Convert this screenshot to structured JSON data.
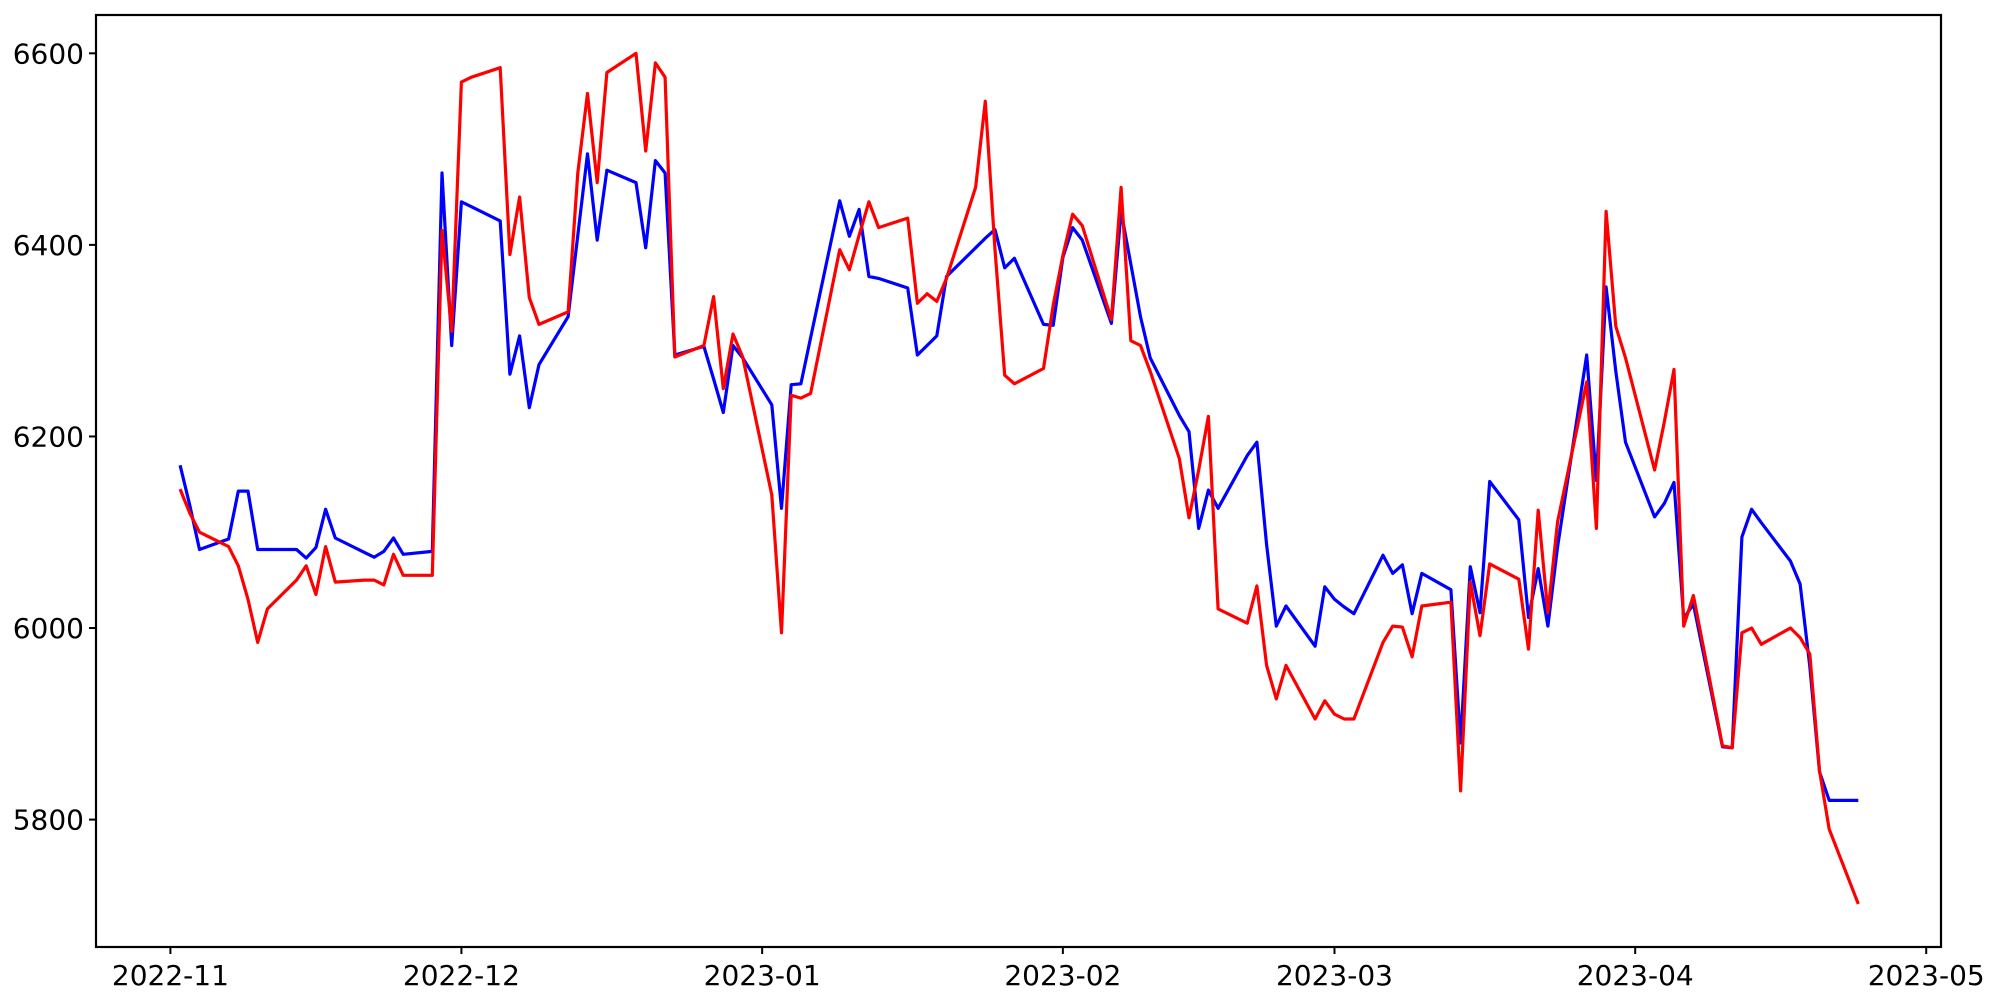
{
  "page": {
    "background_color": "#ffffff",
    "text_color": "#000000",
    "spine_color": "#000000"
  },
  "chart_data": {
    "type": "line",
    "title": "",
    "xlabel": "",
    "ylabel": "",
    "grid": false,
    "legend_position": "none",
    "x_tick_labels": [
      "2022-11",
      "2022-12",
      "2023-01",
      "2023-02",
      "2023-03",
      "2023-04",
      "2023-05"
    ],
    "x_tick_dates": [
      "2022-11-01",
      "2022-12-01",
      "2023-01-01",
      "2023-02-01",
      "2023-03-01",
      "2023-04-01",
      "2023-05-01"
    ],
    "y_ticks": [
      5800,
      6000,
      6200,
      6400,
      6600
    ],
    "ylim": [
      5667,
      6640
    ],
    "xlim": [
      "2022-10-24",
      "2023-05-02"
    ],
    "dates": [
      "2022-11-02",
      "2022-11-03",
      "2022-11-04",
      "2022-11-07",
      "2022-11-08",
      "2022-11-09",
      "2022-11-10",
      "2022-11-11",
      "2022-11-14",
      "2022-11-15",
      "2022-11-16",
      "2022-11-17",
      "2022-11-18",
      "2022-11-21",
      "2022-11-22",
      "2022-11-23",
      "2022-11-24",
      "2022-11-25",
      "2022-11-28",
      "2022-11-29",
      "2022-11-30",
      "2022-12-01",
      "2022-12-02",
      "2022-12-05",
      "2022-12-06",
      "2022-12-07",
      "2022-12-08",
      "2022-12-09",
      "2022-12-12",
      "2022-12-13",
      "2022-12-14",
      "2022-12-15",
      "2022-12-16",
      "2022-12-19",
      "2022-12-20",
      "2022-12-21",
      "2022-12-22",
      "2022-12-23",
      "2022-12-26",
      "2022-12-27",
      "2022-12-28",
      "2022-12-29",
      "2022-12-30",
      "2023-01-02",
      "2023-01-03",
      "2023-01-04",
      "2023-01-05",
      "2023-01-06",
      "2023-01-09",
      "2023-01-10",
      "2023-01-11",
      "2023-01-12",
      "2023-01-13",
      "2023-01-16",
      "2023-01-17",
      "2023-01-18",
      "2023-01-19",
      "2023-01-20",
      "2023-01-23",
      "2023-01-24",
      "2023-01-25",
      "2023-01-26",
      "2023-01-27",
      "2023-01-30",
      "2023-01-31",
      "2023-02-01",
      "2023-02-02",
      "2023-02-03",
      "2023-02-06",
      "2023-02-07",
      "2023-02-08",
      "2023-02-09",
      "2023-02-10",
      "2023-02-13",
      "2023-02-14",
      "2023-02-15",
      "2023-02-16",
      "2023-02-17",
      "2023-02-20",
      "2023-02-21",
      "2023-02-22",
      "2023-02-23",
      "2023-02-24",
      "2023-02-27",
      "2023-02-28",
      "2023-03-01",
      "2023-03-02",
      "2023-03-03",
      "2023-03-06",
      "2023-03-07",
      "2023-03-08",
      "2023-03-09",
      "2023-03-10",
      "2023-03-13",
      "2023-03-14",
      "2023-03-15",
      "2023-03-16",
      "2023-03-17",
      "2023-03-20",
      "2023-03-21",
      "2023-03-22",
      "2023-03-23",
      "2023-03-24",
      "2023-03-27",
      "2023-03-28",
      "2023-03-29",
      "2023-03-30",
      "2023-03-31",
      "2023-04-03",
      "2023-04-04",
      "2023-04-05",
      "2023-04-06",
      "2023-04-07",
      "2023-04-10",
      "2023-04-11",
      "2023-04-12",
      "2023-04-13",
      "2023-04-14",
      "2023-04-17",
      "2023-04-18",
      "2023-04-19",
      "2023-04-20",
      "2023-04-21",
      "2023-04-24"
    ],
    "series": [
      {
        "name": "blue-line",
        "color": "#0000ff",
        "values": [
          6170,
          6128,
          6082,
          6093,
          6143,
          6143,
          6082,
          6082,
          6082,
          6073,
          6084,
          6124,
          6094,
          6079,
          6074,
          6080,
          6094,
          6077,
          6080,
          6475,
          6295,
          6445,
          6440,
          6425,
          6265,
          6305,
          6230,
          6275,
          6325,
          6410,
          6495,
          6405,
          6478,
          6465,
          6397,
          6488,
          6475,
          6285,
          6294,
          6260,
          6225,
          6295,
          6282,
          6233,
          6125,
          6254,
          6255,
          6303,
          6446,
          6409,
          6437,
          6367,
          6365,
          6355,
          6285,
          6295,
          6305,
          6367,
          6397,
          6407,
          6416,
          6376,
          6386,
          6317,
          6316,
          6387,
          6418,
          6405,
          6318,
          6435,
          6380,
          6325,
          6282,
          6222,
          6205,
          6104,
          6144,
          6125,
          6180,
          6194,
          6087,
          6002,
          6023,
          5981,
          6043,
          6030,
          6022,
          6015,
          6076,
          6057,
          6066,
          6015,
          6057,
          6040,
          5880,
          6064,
          6016,
          6153,
          6113,
          6011,
          6062,
          6002,
          6085,
          6285,
          6154,
          6356,
          6268,
          6194,
          6116,
          6130,
          6152,
          6010,
          6025,
          5876,
          5875,
          6095,
          6124,
          6110,
          6070,
          6046,
          5960,
          5850,
          5820,
          5820
        ]
      },
      {
        "name": "red-line",
        "color": "#ff0000",
        "values": [
          6145,
          6120,
          6100,
          6085,
          6065,
          6030,
          5985,
          6020,
          6050,
          6065,
          6035,
          6085,
          6048,
          6050,
          6050,
          6045,
          6077,
          6055,
          6055,
          6415,
          6310,
          6570,
          6575,
          6585,
          6390,
          6450,
          6345,
          6317,
          6330,
          6475,
          6558,
          6465,
          6580,
          6600,
          6498,
          6590,
          6575,
          6283,
          6295,
          6346,
          6250,
          6307,
          6283,
          6139,
          5995,
          6243,
          6240,
          6245,
          6395,
          6374,
          6410,
          6445,
          6418,
          6428,
          6339,
          6349,
          6341,
          6365,
          6460,
          6550,
          6395,
          6264,
          6255,
          6271,
          6337,
          6389,
          6432,
          6420,
          6322,
          6460,
          6300,
          6295,
          6268,
          6177,
          6115,
          6165,
          6221,
          6020,
          6005,
          6044,
          5961,
          5926,
          5961,
          5905,
          5924,
          5910,
          5905,
          5905,
          5985,
          6002,
          6001,
          5970,
          6023,
          6027,
          5830,
          6048,
          5992,
          6067,
          6051,
          5978,
          6123,
          6016,
          6111,
          6257,
          6104,
          6435,
          6315,
          6282,
          6165,
          6215,
          6270,
          6002,
          6034,
          5877,
          5875,
          5995,
          6000,
          5983,
          6000,
          5990,
          5973,
          5851,
          5790,
          5712
        ]
      }
    ]
  }
}
